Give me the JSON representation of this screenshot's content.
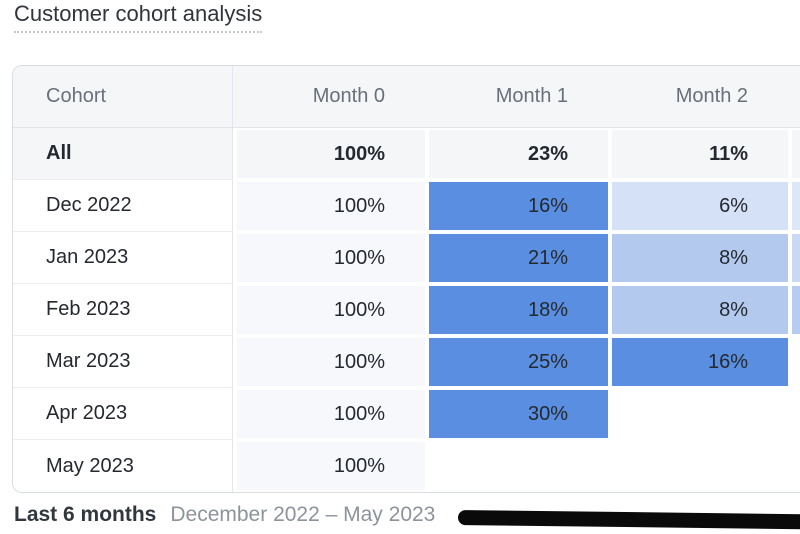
{
  "title": "Customer cohort analysis",
  "table": {
    "columns": [
      "Cohort",
      "Month 0",
      "Month 1",
      "Month 2",
      ""
    ],
    "rows": [
      {
        "label": "All",
        "bold": true,
        "cells": [
          {
            "text": "100%",
            "bg": "#f5f6f8"
          },
          {
            "text": "23%",
            "bg": "#f5f6f8"
          },
          {
            "text": "11%",
            "bg": "#f5f6f8"
          },
          {
            "text": "",
            "bg": "#f5f6f8"
          }
        ]
      },
      {
        "label": "Dec 2022",
        "cells": [
          {
            "text": "100%",
            "bg": "#f7f8fb"
          },
          {
            "text": "16%",
            "bg": "#598ee0"
          },
          {
            "text": "6%",
            "bg": "#d5e1f6"
          },
          {
            "text": "",
            "bg": "#dde7f8"
          }
        ]
      },
      {
        "label": "Jan 2023",
        "cells": [
          {
            "text": "100%",
            "bg": "#f7f8fb"
          },
          {
            "text": "21%",
            "bg": "#598ee0"
          },
          {
            "text": "8%",
            "bg": "#b3caee"
          },
          {
            "text": "",
            "bg": "#c9d8f3"
          }
        ]
      },
      {
        "label": "Feb 2023",
        "cells": [
          {
            "text": "100%",
            "bg": "#f7f8fb"
          },
          {
            "text": "18%",
            "bg": "#598ee0"
          },
          {
            "text": "8%",
            "bg": "#b3caee"
          },
          {
            "text": "",
            "bg": "#b6ccf0"
          }
        ]
      },
      {
        "label": "Mar 2023",
        "cells": [
          {
            "text": "100%",
            "bg": "#f7f8fb"
          },
          {
            "text": "25%",
            "bg": "#598ee0"
          },
          {
            "text": "16%",
            "bg": "#598ee0"
          },
          {
            "text": "",
            "bg": ""
          }
        ]
      },
      {
        "label": "Apr 2023",
        "cells": [
          {
            "text": "100%",
            "bg": "#f7f8fb"
          },
          {
            "text": "30%",
            "bg": "#598ee0"
          },
          {
            "text": "",
            "bg": ""
          },
          {
            "text": "",
            "bg": ""
          }
        ]
      },
      {
        "label": "May 2023",
        "cells": [
          {
            "text": "100%",
            "bg": "#f7f8fb"
          },
          {
            "text": "",
            "bg": ""
          },
          {
            "text": "",
            "bg": ""
          },
          {
            "text": "",
            "bg": ""
          }
        ]
      }
    ]
  },
  "footer": {
    "range_label": "Last 6 months",
    "range_value": "December 2022 – May 2023"
  },
  "palette": {
    "heat_high": "#598ee0",
    "heat_mid": "#b3caee",
    "heat_low": "#d5e1f6",
    "header_bg": "#f5f6f8"
  },
  "chart_data": {
    "type": "heatmap",
    "title": "Customer cohort analysis",
    "columns": [
      "Month 0",
      "Month 1",
      "Month 2"
    ],
    "rows": [
      "All",
      "Dec 2022",
      "Jan 2023",
      "Feb 2023",
      "Mar 2023",
      "Apr 2023",
      "May 2023"
    ],
    "values_pct": [
      [
        100,
        23,
        11
      ],
      [
        100,
        16,
        6
      ],
      [
        100,
        21,
        8
      ],
      [
        100,
        18,
        8
      ],
      [
        100,
        25,
        16
      ],
      [
        100,
        30,
        null
      ],
      [
        100,
        null,
        null
      ]
    ],
    "period_label": "Last 6 months",
    "period_range": "December 2022 – May 2023",
    "legend_position": "none",
    "color_mapping": "higher retention % = darker blue"
  }
}
